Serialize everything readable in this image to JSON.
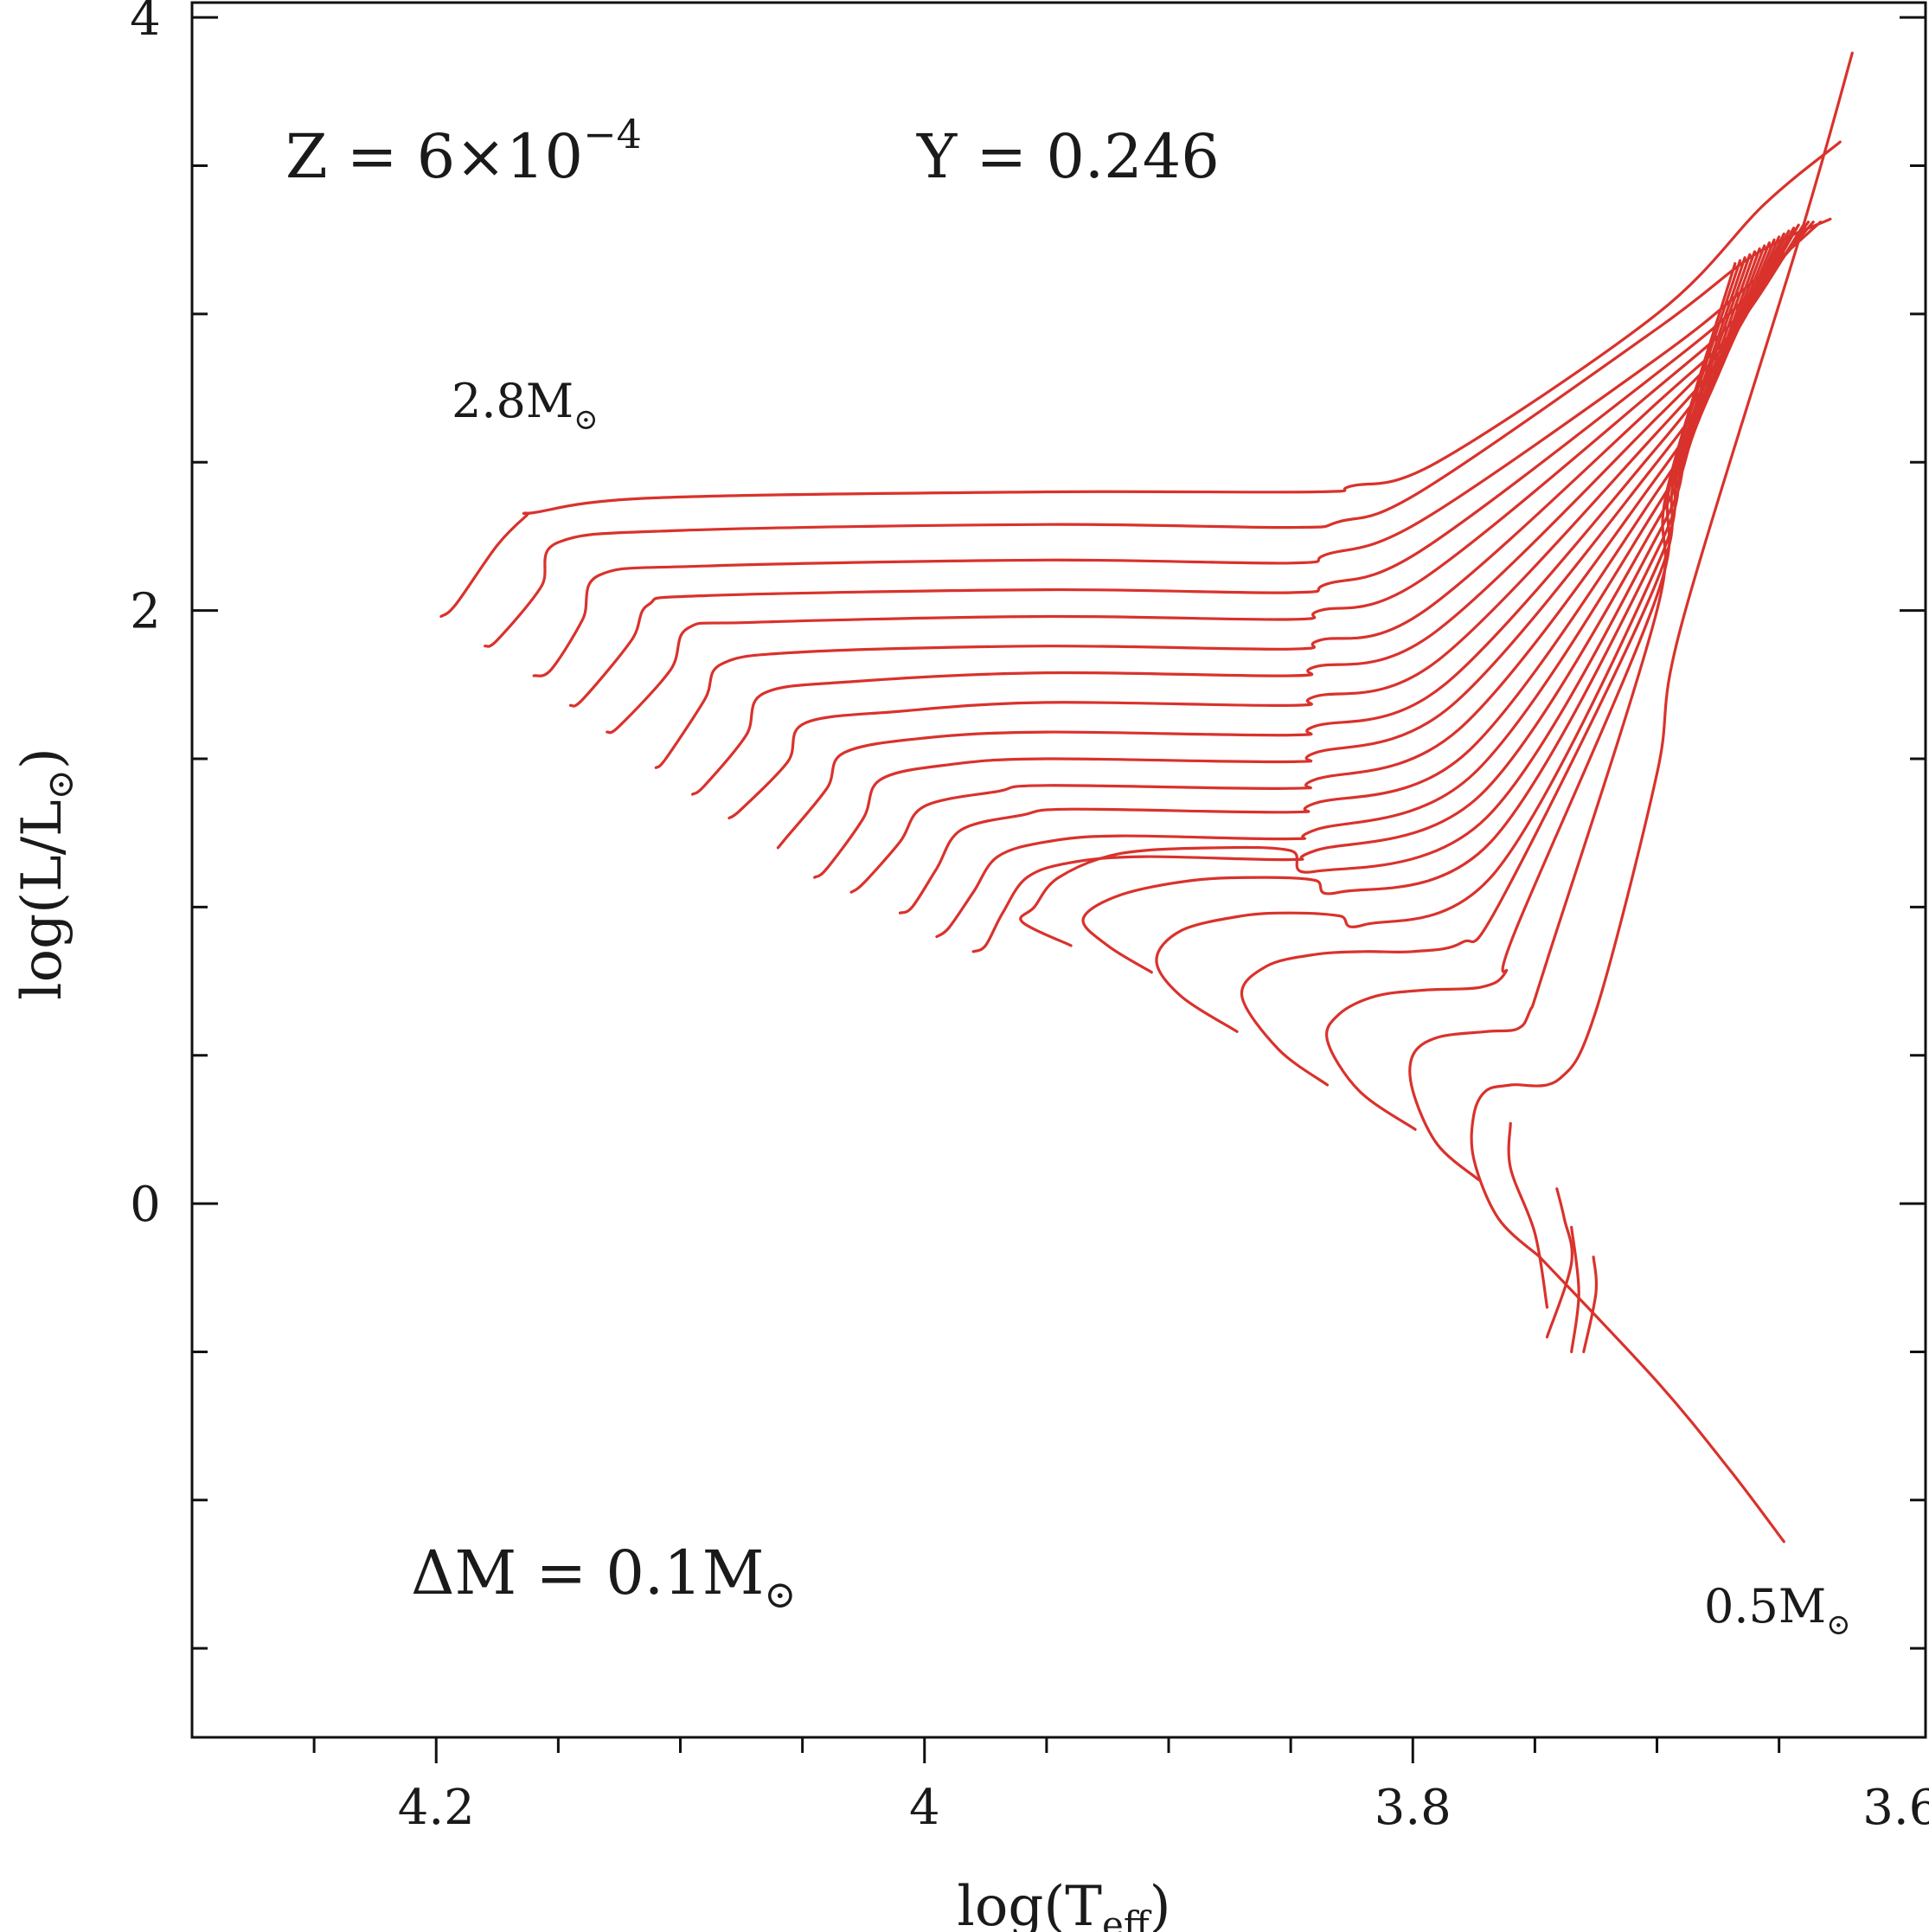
{
  "chart_data": {
    "type": "line",
    "title": "",
    "xlabel": "log(T_eff)",
    "xlabel_parts": {
      "pre": "log(T",
      "sub": "eff",
      "post": ")"
    },
    "ylabel": "log(L/L⊙)",
    "ylabel_parts": {
      "pre": "log(L/L",
      "sub": "⊙",
      "post": ")"
    },
    "xlim": [
      4.3,
      3.59
    ],
    "ylim": [
      -1.8,
      4.05
    ],
    "x_reversed": true,
    "xticks": [
      {
        "value": 4.2,
        "label": "4.2"
      },
      {
        "value": 4.0,
        "label": "4"
      },
      {
        "value": 3.8,
        "label": "3.8"
      },
      {
        "value": 3.6,
        "label": "3.6"
      }
    ],
    "yticks": [
      {
        "value": 4,
        "label": "4"
      },
      {
        "value": 2,
        "label": "2"
      },
      {
        "value": 0,
        "label": "0"
      }
    ],
    "x_minor_step": 0.05,
    "y_minor_step": 0.5,
    "grid": false,
    "line_color": "#d9322c",
    "annotations": {
      "composition": {
        "z_text": "Z = 6×10",
        "z_exp": "−4",
        "y_text": "Y = 0.246"
      },
      "mass_step": {
        "text": "ΔM = 0.1M",
        "sym": "⊙"
      },
      "top_mass": {
        "text": "2.8M",
        "sym": "⊙"
      },
      "bottom_mass": {
        "text": "0.5M",
        "sym": "⊙"
      }
    },
    "series": [
      {
        "name": "2.8 Msun",
        "x": [
          4.198,
          4.192,
          4.175,
          4.163,
          4.16,
          4.11,
          3.95,
          3.84,
          3.825,
          3.79,
          3.7,
          3.656,
          3.625
        ],
        "y": [
          1.98,
          2.02,
          2.22,
          2.32,
          2.33,
          2.38,
          2.4,
          2.4,
          2.42,
          2.5,
          3.0,
          3.37,
          3.58
        ]
      },
      {
        "name": "2.7 Msun",
        "x": [
          4.18,
          4.175,
          4.157,
          4.15,
          4.1,
          3.95,
          3.85,
          3.83,
          3.797,
          3.7,
          3.66,
          3.629
        ],
        "y": [
          1.88,
          1.9,
          2.08,
          2.23,
          2.27,
          2.29,
          2.28,
          2.3,
          2.4,
          2.95,
          3.2,
          3.32
        ]
      },
      {
        "name": "2.6 Msun",
        "x": [
          4.16,
          4.153,
          4.14,
          4.133,
          4.09,
          3.95,
          3.85,
          3.835,
          3.797,
          3.7,
          3.662,
          3.633
        ],
        "y": [
          1.78,
          1.8,
          1.97,
          2.12,
          2.15,
          2.17,
          2.16,
          2.19,
          2.3,
          2.85,
          3.1,
          3.31
        ]
      },
      {
        "name": "2.5 Msun",
        "x": [
          4.145,
          4.14,
          4.12,
          4.113,
          4.09,
          3.95,
          3.85,
          3.835,
          3.797,
          3.7,
          3.664,
          3.636
        ],
        "y": [
          1.68,
          1.7,
          1.9,
          2.02,
          2.05,
          2.07,
          2.06,
          2.09,
          2.2,
          2.8,
          3.05,
          3.31
        ]
      },
      {
        "name": "2.4 Msun",
        "x": [
          4.13,
          4.125,
          4.104,
          4.097,
          4.07,
          3.95,
          3.85,
          3.838,
          3.797,
          3.7,
          3.666,
          3.638
        ],
        "y": [
          1.59,
          1.61,
          1.8,
          1.94,
          1.96,
          1.98,
          1.97,
          2.0,
          2.1,
          2.75,
          3.0,
          3.31
        ]
      },
      {
        "name": "2.3 Msun",
        "x": [
          4.11,
          4.106,
          4.09,
          4.083,
          4.05,
          3.95,
          3.85,
          3.838,
          3.795,
          3.7,
          3.668,
          3.64
        ],
        "y": [
          1.47,
          1.5,
          1.7,
          1.82,
          1.86,
          1.88,
          1.87,
          1.9,
          2.0,
          2.7,
          2.95,
          3.3
        ]
      },
      {
        "name": "2.2 Msun",
        "x": [
          4.095,
          4.09,
          4.073,
          4.066,
          4.03,
          3.95,
          3.85,
          3.84,
          3.792,
          3.7,
          3.67,
          3.642
        ],
        "y": [
          1.38,
          1.41,
          1.58,
          1.72,
          1.76,
          1.79,
          1.78,
          1.81,
          1.92,
          2.65,
          2.92,
          3.3
        ]
      },
      {
        "name": "2.1 Msun",
        "x": [
          4.08,
          4.075,
          4.056,
          4.049,
          4.01,
          3.95,
          3.85,
          3.84,
          3.79,
          3.7,
          3.672,
          3.644
        ],
        "y": [
          1.3,
          1.33,
          1.49,
          1.62,
          1.66,
          1.69,
          1.68,
          1.71,
          1.83,
          2.6,
          2.88,
          3.29
        ]
      },
      {
        "name": "2.0 Msun",
        "x": [
          4.06,
          4.057,
          4.04,
          4.033,
          4.0,
          3.95,
          3.85,
          3.84,
          3.787,
          3.7,
          3.674,
          3.646
        ],
        "y": [
          1.2,
          1.23,
          1.4,
          1.52,
          1.57,
          1.59,
          1.58,
          1.61,
          1.75,
          2.55,
          2.85,
          3.28
        ]
      },
      {
        "name": "1.9 Msun",
        "x": [
          4.045,
          4.04,
          4.025,
          4.018,
          3.99,
          3.95,
          3.85,
          3.84,
          3.784,
          3.7,
          3.676,
          3.648
        ],
        "y": [
          1.1,
          1.13,
          1.3,
          1.43,
          1.48,
          1.5,
          1.49,
          1.52,
          1.68,
          2.5,
          2.8,
          3.27
        ]
      },
      {
        "name": "1.8 Msun",
        "x": [
          4.03,
          4.025,
          4.01,
          4.0,
          3.97,
          3.95,
          3.85,
          3.84,
          3.781,
          3.7,
          3.678,
          3.65
        ],
        "y": [
          1.05,
          1.08,
          1.22,
          1.34,
          1.39,
          1.41,
          1.4,
          1.43,
          1.6,
          2.45,
          2.75,
          3.26
        ]
      },
      {
        "name": "1.7 Msun",
        "x": [
          4.01,
          4.005,
          3.995,
          3.985,
          3.96,
          3.94,
          3.85,
          3.84,
          3.778,
          3.7,
          3.68,
          3.652
        ],
        "y": [
          0.98,
          1.0,
          1.13,
          1.26,
          1.31,
          1.33,
          1.32,
          1.35,
          1.52,
          2.4,
          2.7,
          3.25
        ]
      },
      {
        "name": "1.6 Msun",
        "x": [
          3.995,
          3.99,
          3.98,
          3.97,
          3.95,
          3.92,
          3.85,
          3.84,
          3.775,
          3.7,
          3.682,
          3.654
        ],
        "y": [
          0.9,
          0.93,
          1.05,
          1.17,
          1.22,
          1.24,
          1.23,
          1.26,
          1.45,
          2.35,
          2.66,
          3.24
        ]
      },
      {
        "name": "1.5 Msun",
        "x": [
          3.98,
          3.975,
          3.968,
          3.958,
          3.94,
          3.91,
          3.85,
          3.84,
          3.772,
          3.7,
          3.684,
          3.656
        ],
        "y": [
          0.85,
          0.87,
          0.98,
          1.1,
          1.15,
          1.17,
          1.16,
          1.19,
          1.38,
          2.3,
          2.62,
          3.23
        ]
      },
      {
        "name": "1.4 Msun",
        "x": [
          3.94,
          3.96,
          3.955,
          3.945,
          3.92,
          3.88,
          3.85,
          3.84,
          3.77,
          3.7,
          3.686,
          3.658
        ],
        "y": [
          0.87,
          0.95,
          1.0,
          1.1,
          1.18,
          1.2,
          1.19,
          1.12,
          1.3,
          2.25,
          2.58,
          3.22
        ]
      },
      {
        "name": "1.3 Msun",
        "x": [
          3.907,
          3.925,
          3.935,
          3.92,
          3.89,
          3.86,
          3.84,
          3.83,
          3.768,
          3.7,
          3.688,
          3.66
        ],
        "y": [
          0.78,
          0.87,
          0.96,
          1.04,
          1.09,
          1.1,
          1.09,
          1.05,
          1.22,
          2.2,
          2.55,
          3.21
        ]
      },
      {
        "name": "1.2 Msun",
        "x": [
          3.872,
          3.895,
          3.905,
          3.895,
          3.87,
          3.85,
          3.83,
          3.82,
          3.766,
          3.7,
          3.69,
          3.662
        ],
        "y": [
          0.58,
          0.7,
          0.82,
          0.92,
          0.97,
          0.98,
          0.97,
          0.94,
          1.12,
          2.15,
          2.52,
          3.2
        ]
      },
      {
        "name": "1.1 Msun",
        "x": [
          3.835,
          3.855,
          3.87,
          3.86,
          3.84,
          3.82,
          3.8,
          3.78,
          3.764,
          3.7,
          3.692,
          3.664
        ],
        "y": [
          0.4,
          0.52,
          0.7,
          0.8,
          0.84,
          0.85,
          0.85,
          0.88,
          1.02,
          2.1,
          2.48,
          3.19
        ]
      },
      {
        "name": "1.0 Msun",
        "x": [
          3.799,
          3.822,
          3.835,
          3.83,
          3.815,
          3.795,
          3.772,
          3.762,
          3.758,
          3.7,
          3.694,
          3.666
        ],
        "y": [
          0.25,
          0.38,
          0.55,
          0.64,
          0.7,
          0.72,
          0.73,
          0.78,
          0.92,
          2.05,
          2.45,
          3.18
        ]
      },
      {
        "name": "0.9 Msun",
        "x": [
          3.773,
          3.79,
          3.8,
          3.8,
          3.79,
          3.77,
          3.757,
          3.752,
          3.745,
          3.7,
          3.696,
          3.668
        ],
        "y": [
          0.08,
          0.2,
          0.38,
          0.5,
          0.56,
          0.58,
          0.59,
          0.65,
          0.82,
          2.0,
          2.4,
          3.17
        ]
      },
      {
        "name": "0.8 Msun",
        "x": [
          3.748,
          3.765,
          3.775,
          3.775,
          3.77,
          3.76,
          3.74,
          3.725,
          3.7,
          3.69,
          3.64,
          3.62
        ],
        "y": [
          -0.18,
          -0.05,
          0.15,
          0.3,
          0.38,
          0.4,
          0.42,
          0.65,
          1.45,
          1.95,
          3.3,
          3.88
        ]
      },
      {
        "name": "0.7 Msun",
        "x": [
          3.745,
          3.75,
          3.76,
          3.76
        ],
        "y": [
          -0.35,
          -0.1,
          0.12,
          0.27
        ]
      },
      {
        "name": "0.65 Msun",
        "x": [
          3.745,
          3.735,
          3.738,
          3.741
        ],
        "y": [
          -0.45,
          -0.2,
          -0.05,
          0.05
        ]
      },
      {
        "name": "0.6 Msun",
        "x": [
          3.735,
          3.732,
          3.735
        ],
        "y": [
          -0.5,
          -0.3,
          -0.08
        ]
      },
      {
        "name": "0.55 Msun",
        "x": [
          3.73,
          3.725,
          3.726
        ],
        "y": [
          -0.5,
          -0.3,
          -0.18
        ]
      },
      {
        "name": "0.5 Msun",
        "x": [
          3.748,
          3.7,
          3.67,
          3.648
        ],
        "y": [
          -0.18,
          -0.6,
          -0.9,
          -1.14
        ]
      }
    ]
  }
}
